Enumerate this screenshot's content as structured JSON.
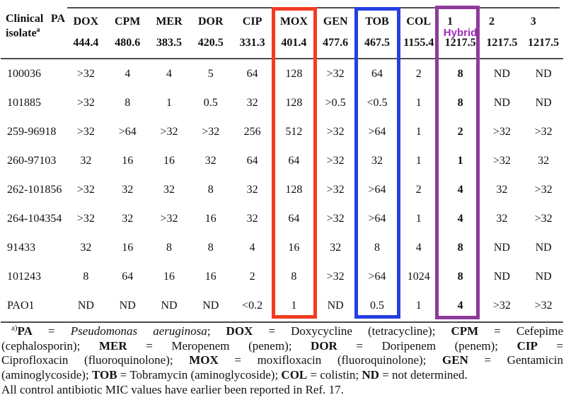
{
  "colors": {
    "red_box": "#f33b22",
    "blue_box": "#2440e0",
    "purple_box": "#8e3a9b",
    "hybrid_text": "#a12cb5"
  },
  "table": {
    "corner": {
      "line1_left": "Clinical",
      "line1_right": "PA",
      "line2": "isolate",
      "line2_sup": "a"
    },
    "columns": [
      {
        "abbr": "DOX",
        "mass": "444.4"
      },
      {
        "abbr": "CPM",
        "mass": "480.6"
      },
      {
        "abbr": "MER",
        "mass": "383.5"
      },
      {
        "abbr": "DOR",
        "mass": "420.5"
      },
      {
        "abbr": "CIP",
        "mass": "331.3"
      },
      {
        "abbr": "MOX",
        "mass": "401.4",
        "box": "red"
      },
      {
        "abbr": "GEN",
        "mass": "477.6"
      },
      {
        "abbr": "TOB",
        "mass": "467.5",
        "box": "blue"
      },
      {
        "abbr": "COL",
        "mass": "1155.4"
      },
      {
        "abbr": "1",
        "sub": "Hybrid",
        "mass": "1217.5",
        "box": "purple",
        "bold_values": true,
        "left_align": true
      },
      {
        "abbr": "2",
        "mass": "1217.5",
        "left_align": true
      },
      {
        "abbr": "3",
        "mass": "1217.5",
        "left_align": true
      }
    ],
    "rows": [
      {
        "isolate": "100036",
        "values": [
          ">32",
          "4",
          "4",
          "5",
          "64",
          "128",
          ">32",
          "64",
          "2",
          "8",
          "ND",
          "ND"
        ]
      },
      {
        "isolate": "101885",
        "values": [
          ">32",
          "8",
          "1",
          "0.5",
          "32",
          "128",
          ">0.5",
          "<0.5",
          "1",
          "8",
          "ND",
          "ND"
        ]
      },
      {
        "isolate": "259-96918",
        "values": [
          ">32",
          ">64",
          ">32",
          ">32",
          "256",
          "512",
          ">32",
          ">64",
          "1",
          "2",
          ">32",
          ">32"
        ]
      },
      {
        "isolate": "260-97103",
        "values": [
          "32",
          "16",
          "16",
          "32",
          "64",
          "64",
          ">32",
          "32",
          "1",
          "1",
          ">32",
          "32"
        ]
      },
      {
        "isolate": "262-101856",
        "values": [
          ">32",
          "32",
          "32",
          "8",
          "32",
          "128",
          ">32",
          ">64",
          "2",
          "4",
          "32",
          ">32"
        ]
      },
      {
        "isolate": "264-104354",
        "values": [
          ">32",
          "32",
          ">32",
          "16",
          "32",
          "64",
          ">32",
          ">64",
          "1",
          "4",
          "32",
          ">32"
        ]
      },
      {
        "isolate": "91433",
        "values": [
          "32",
          "16",
          "8",
          "8",
          "4",
          "16",
          "32",
          "8",
          "4",
          "8",
          "ND",
          "ND"
        ]
      },
      {
        "isolate": "101243",
        "values": [
          "8",
          "64",
          "16",
          "16",
          "2",
          "8",
          ">32",
          ">64",
          "1024",
          "8",
          "ND",
          "ND"
        ]
      },
      {
        "isolate": "PAO1",
        "values": [
          "ND",
          "ND",
          "ND",
          "ND",
          "<0.2",
          "1",
          "ND",
          "0.5",
          "1",
          "4",
          ">32",
          ">32"
        ]
      }
    ]
  },
  "footnote": {
    "lines": [
      {
        "justify": true,
        "indent": true,
        "segments": [
          {
            "t": "a)",
            "sup": true
          },
          {
            "t": "PA",
            "b": true
          },
          {
            "t": " = "
          },
          {
            "t": "Pseudomonas aeruginosa",
            "i": true
          },
          {
            "t": "; "
          },
          {
            "t": "DOX",
            "b": true
          },
          {
            "t": " = Doxycycline (tetracycline); "
          },
          {
            "t": "CPM",
            "b": true
          },
          {
            "t": " = Cefepime"
          }
        ]
      },
      {
        "justify": true,
        "segments": [
          {
            "t": "(cephalosporin); "
          },
          {
            "t": "MER",
            "b": true
          },
          {
            "t": " = Meropenem (penem); "
          },
          {
            "t": "DOR",
            "b": true
          },
          {
            "t": " = Doripenem (penem); "
          },
          {
            "t": "CIP",
            "b": true
          },
          {
            "t": " ="
          }
        ]
      },
      {
        "justify": true,
        "segments": [
          {
            "t": "Ciprofloxacin (fluoroquinolone); "
          },
          {
            "t": "MOX",
            "b": true
          },
          {
            "t": " = moxifloxacin (fluoroquinolone); "
          },
          {
            "t": "GEN",
            "b": true
          },
          {
            "t": " = Gentamicin"
          }
        ]
      },
      {
        "justify": false,
        "segments": [
          {
            "t": "(aminoglycoside); "
          },
          {
            "t": "TOB",
            "b": true
          },
          {
            "t": " = Tobramycin (aminoglycoside); "
          },
          {
            "t": "COL",
            "b": true
          },
          {
            "t": " = colistin; "
          },
          {
            "t": "ND",
            "b": true
          },
          {
            "t": " = not determined."
          }
        ]
      },
      {
        "justify": false,
        "segments": [
          {
            "t": "All control antibiotic MIC values have earlier been reported in Ref. 17."
          }
        ]
      }
    ]
  }
}
